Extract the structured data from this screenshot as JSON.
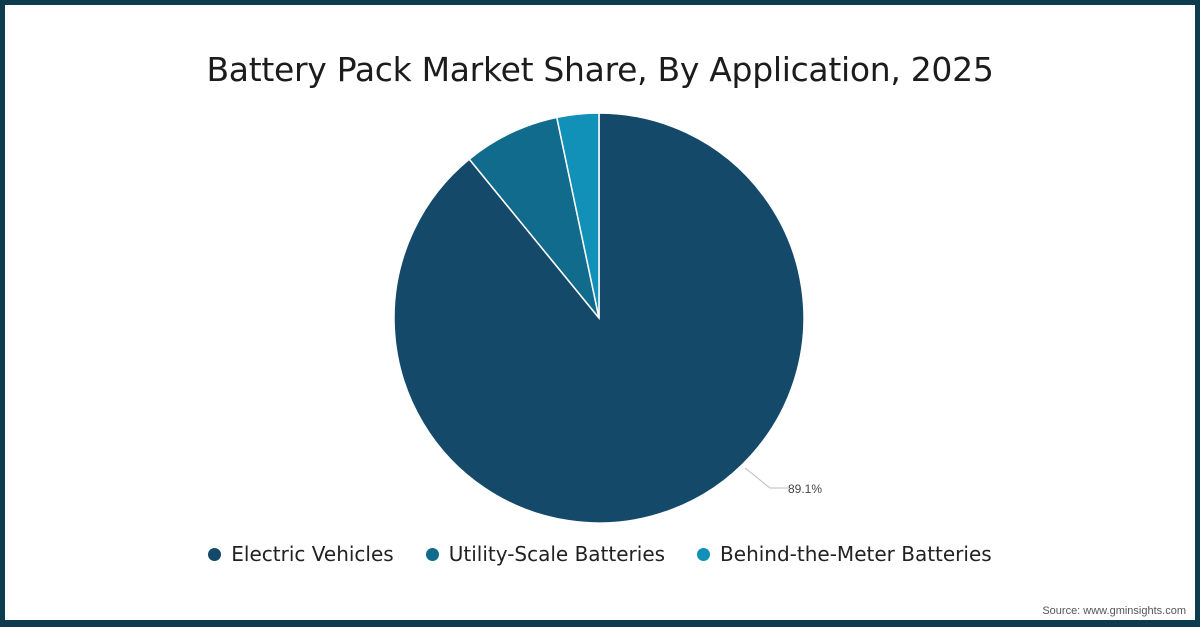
{
  "chart_data": {
    "type": "pie",
    "title": "Battery Pack Market Share, By Application, 2025",
    "categories": [
      "Electric Vehicles",
      "Utility-Scale Batteries",
      "Behind-the-Meter Batteries"
    ],
    "values": [
      89.1,
      7.6,
      3.3
    ],
    "colors": [
      "#15496a",
      "#116b8c",
      "#1190b8"
    ],
    "data_labels": [
      "89.1%",
      "",
      ""
    ],
    "legend_position": "bottom"
  },
  "title": "Battery Pack Market Share, By Application, 2025",
  "legend": [
    {
      "label": "Electric Vehicles",
      "color": "#15496a"
    },
    {
      "label": "Utility-Scale Batteries",
      "color": "#116b8c"
    },
    {
      "label": "Behind-the-Meter Batteries",
      "color": "#1190b8"
    }
  ],
  "data_label": "89.1%",
  "source": "Source: www.gminsights.com"
}
